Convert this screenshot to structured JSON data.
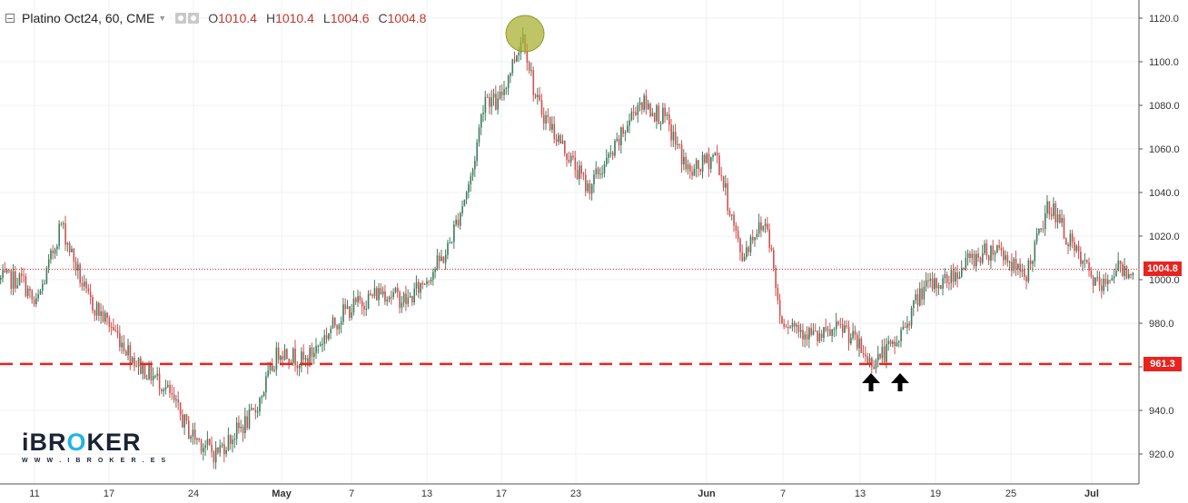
{
  "header": {
    "title": "Platino Oct24, 60, CME",
    "open_key": "O",
    "open": "1010.4",
    "high_key": "H",
    "high": "1010.4",
    "low_key": "L",
    "low": "1004.6",
    "close_key": "C",
    "close": "1004.8"
  },
  "logo": {
    "brand_prefix": "iBR",
    "brand_o": "O",
    "brand_suffix": "KER",
    "url": "W W W . I B R O K E R . E S"
  },
  "price_labels": {
    "last": "1004.8",
    "support": "961.3"
  },
  "colors": {
    "up": "#3e7d5e",
    "down": "#d0504f",
    "support_line": "#e8241f",
    "last_price_line": "#e8241f",
    "highlight_fill": "#a9b134",
    "arrow": "#000000"
  },
  "chart_data": {
    "type": "candlestick",
    "title": "Platino Oct24, 60, CME",
    "yaxis_ticks": [
      920,
      940,
      960,
      980,
      1000,
      1020,
      1040,
      1060,
      1080,
      1100,
      1120
    ],
    "ylim": [
      913,
      1127
    ],
    "xaxis_ticks": [
      "11",
      "17",
      "24",
      "May",
      "7",
      "13",
      "17",
      "23",
      "Jun",
      "7",
      "13",
      "19",
      "25",
      "Jul"
    ],
    "grid": true,
    "last_price": 1004.8,
    "support_level": 961.3,
    "annotations": [
      "highlighted top near 1115",
      "two up arrows below support at 961.3"
    ],
    "approx_path": [
      {
        "x": "Apr 10",
        "y": 1000
      },
      {
        "x": "Apr 11",
        "y": 987
      },
      {
        "x": "Apr 12",
        "y": 1005
      },
      {
        "x": "Apr 13",
        "y": 1026
      },
      {
        "x": "Apr 15",
        "y": 992
      },
      {
        "x": "Apr 17",
        "y": 978
      },
      {
        "x": "Apr 19",
        "y": 961
      },
      {
        "x": "Apr 21",
        "y": 952
      },
      {
        "x": "Apr 23",
        "y": 930
      },
      {
        "x": "Apr 25",
        "y": 920
      },
      {
        "x": "Apr 28",
        "y": 938
      },
      {
        "x": "Apr 30",
        "y": 968
      },
      {
        "x": "May 2",
        "y": 962
      },
      {
        "x": "May 5",
        "y": 985
      },
      {
        "x": "May 8",
        "y": 995
      },
      {
        "x": "May 10",
        "y": 990
      },
      {
        "x": "May 13",
        "y": 1012
      },
      {
        "x": "May 15",
        "y": 1048
      },
      {
        "x": "May 16",
        "y": 1085
      },
      {
        "x": "May 17",
        "y": 1080
      },
      {
        "x": "May 19",
        "y": 1113
      },
      {
        "x": "May 20",
        "y": 1082
      },
      {
        "x": "May 22",
        "y": 1062
      },
      {
        "x": "May 24",
        "y": 1042
      },
      {
        "x": "May 26",
        "y": 1058
      },
      {
        "x": "May 28",
        "y": 1082
      },
      {
        "x": "May 30",
        "y": 1074
      },
      {
        "x": "Jun 1",
        "y": 1048
      },
      {
        "x": "Jun 3",
        "y": 1058
      },
      {
        "x": "Jun 5",
        "y": 1010
      },
      {
        "x": "Jun 6",
        "y": 1022
      },
      {
        "x": "Jun 7",
        "y": 1026
      },
      {
        "x": "Jun 8",
        "y": 983
      },
      {
        "x": "Jun 11",
        "y": 973
      },
      {
        "x": "Jun 13",
        "y": 978
      },
      {
        "x": "Jun 15",
        "y": 962
      },
      {
        "x": "Jun 17",
        "y": 970
      },
      {
        "x": "Jun 19",
        "y": 995
      },
      {
        "x": "Jun 21",
        "y": 1000
      },
      {
        "x": "Jun 23",
        "y": 1010
      },
      {
        "x": "Jun 25",
        "y": 1015
      },
      {
        "x": "Jun 27",
        "y": 1000
      },
      {
        "x": "Jun 29",
        "y": 1035
      },
      {
        "x": "Jul 1",
        "y": 1012
      },
      {
        "x": "Jul 3",
        "y": 995
      },
      {
        "x": "Jul 4",
        "y": 1005
      }
    ]
  }
}
